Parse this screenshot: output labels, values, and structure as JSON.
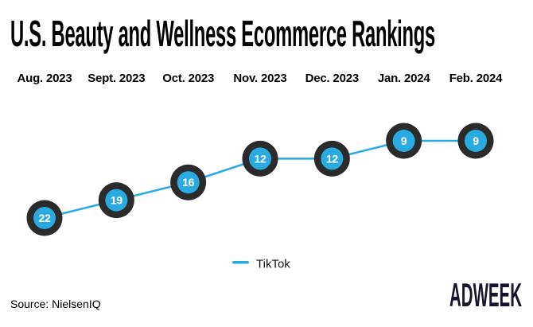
{
  "title": "U.S. Beauty and Wellness Ecommerce Rankings",
  "chart_data": {
    "type": "line",
    "title": "U.S. Beauty and Wellness Ecommerce Rankings",
    "categories": [
      "Aug. 2023",
      "Sept. 2023",
      "Oct. 2023",
      "Nov. 2023",
      "Dec. 2023",
      "Jan. 2024",
      "Feb. 2024"
    ],
    "series": [
      {
        "name": "TikTok",
        "values": [
          22,
          19,
          16,
          12,
          12,
          9,
          9
        ]
      }
    ],
    "value_axis": {
      "label": "ranking",
      "inverted": true,
      "range": [
        9,
        22
      ],
      "axis_visible": false
    },
    "grid": false,
    "data_labels": true,
    "legend_position": "bottom-center",
    "colors": {
      "line": "#29abe2",
      "marker_fill": "#29abe2",
      "marker_ring": "#2b2b2b",
      "marker_text": "#ffffff"
    }
  },
  "legend": {
    "items": [
      {
        "label": "TikTok",
        "color": "#29abe2"
      }
    ]
  },
  "footer": {
    "source": "Source: NielsenIQ",
    "brand": "ADWEEK"
  }
}
